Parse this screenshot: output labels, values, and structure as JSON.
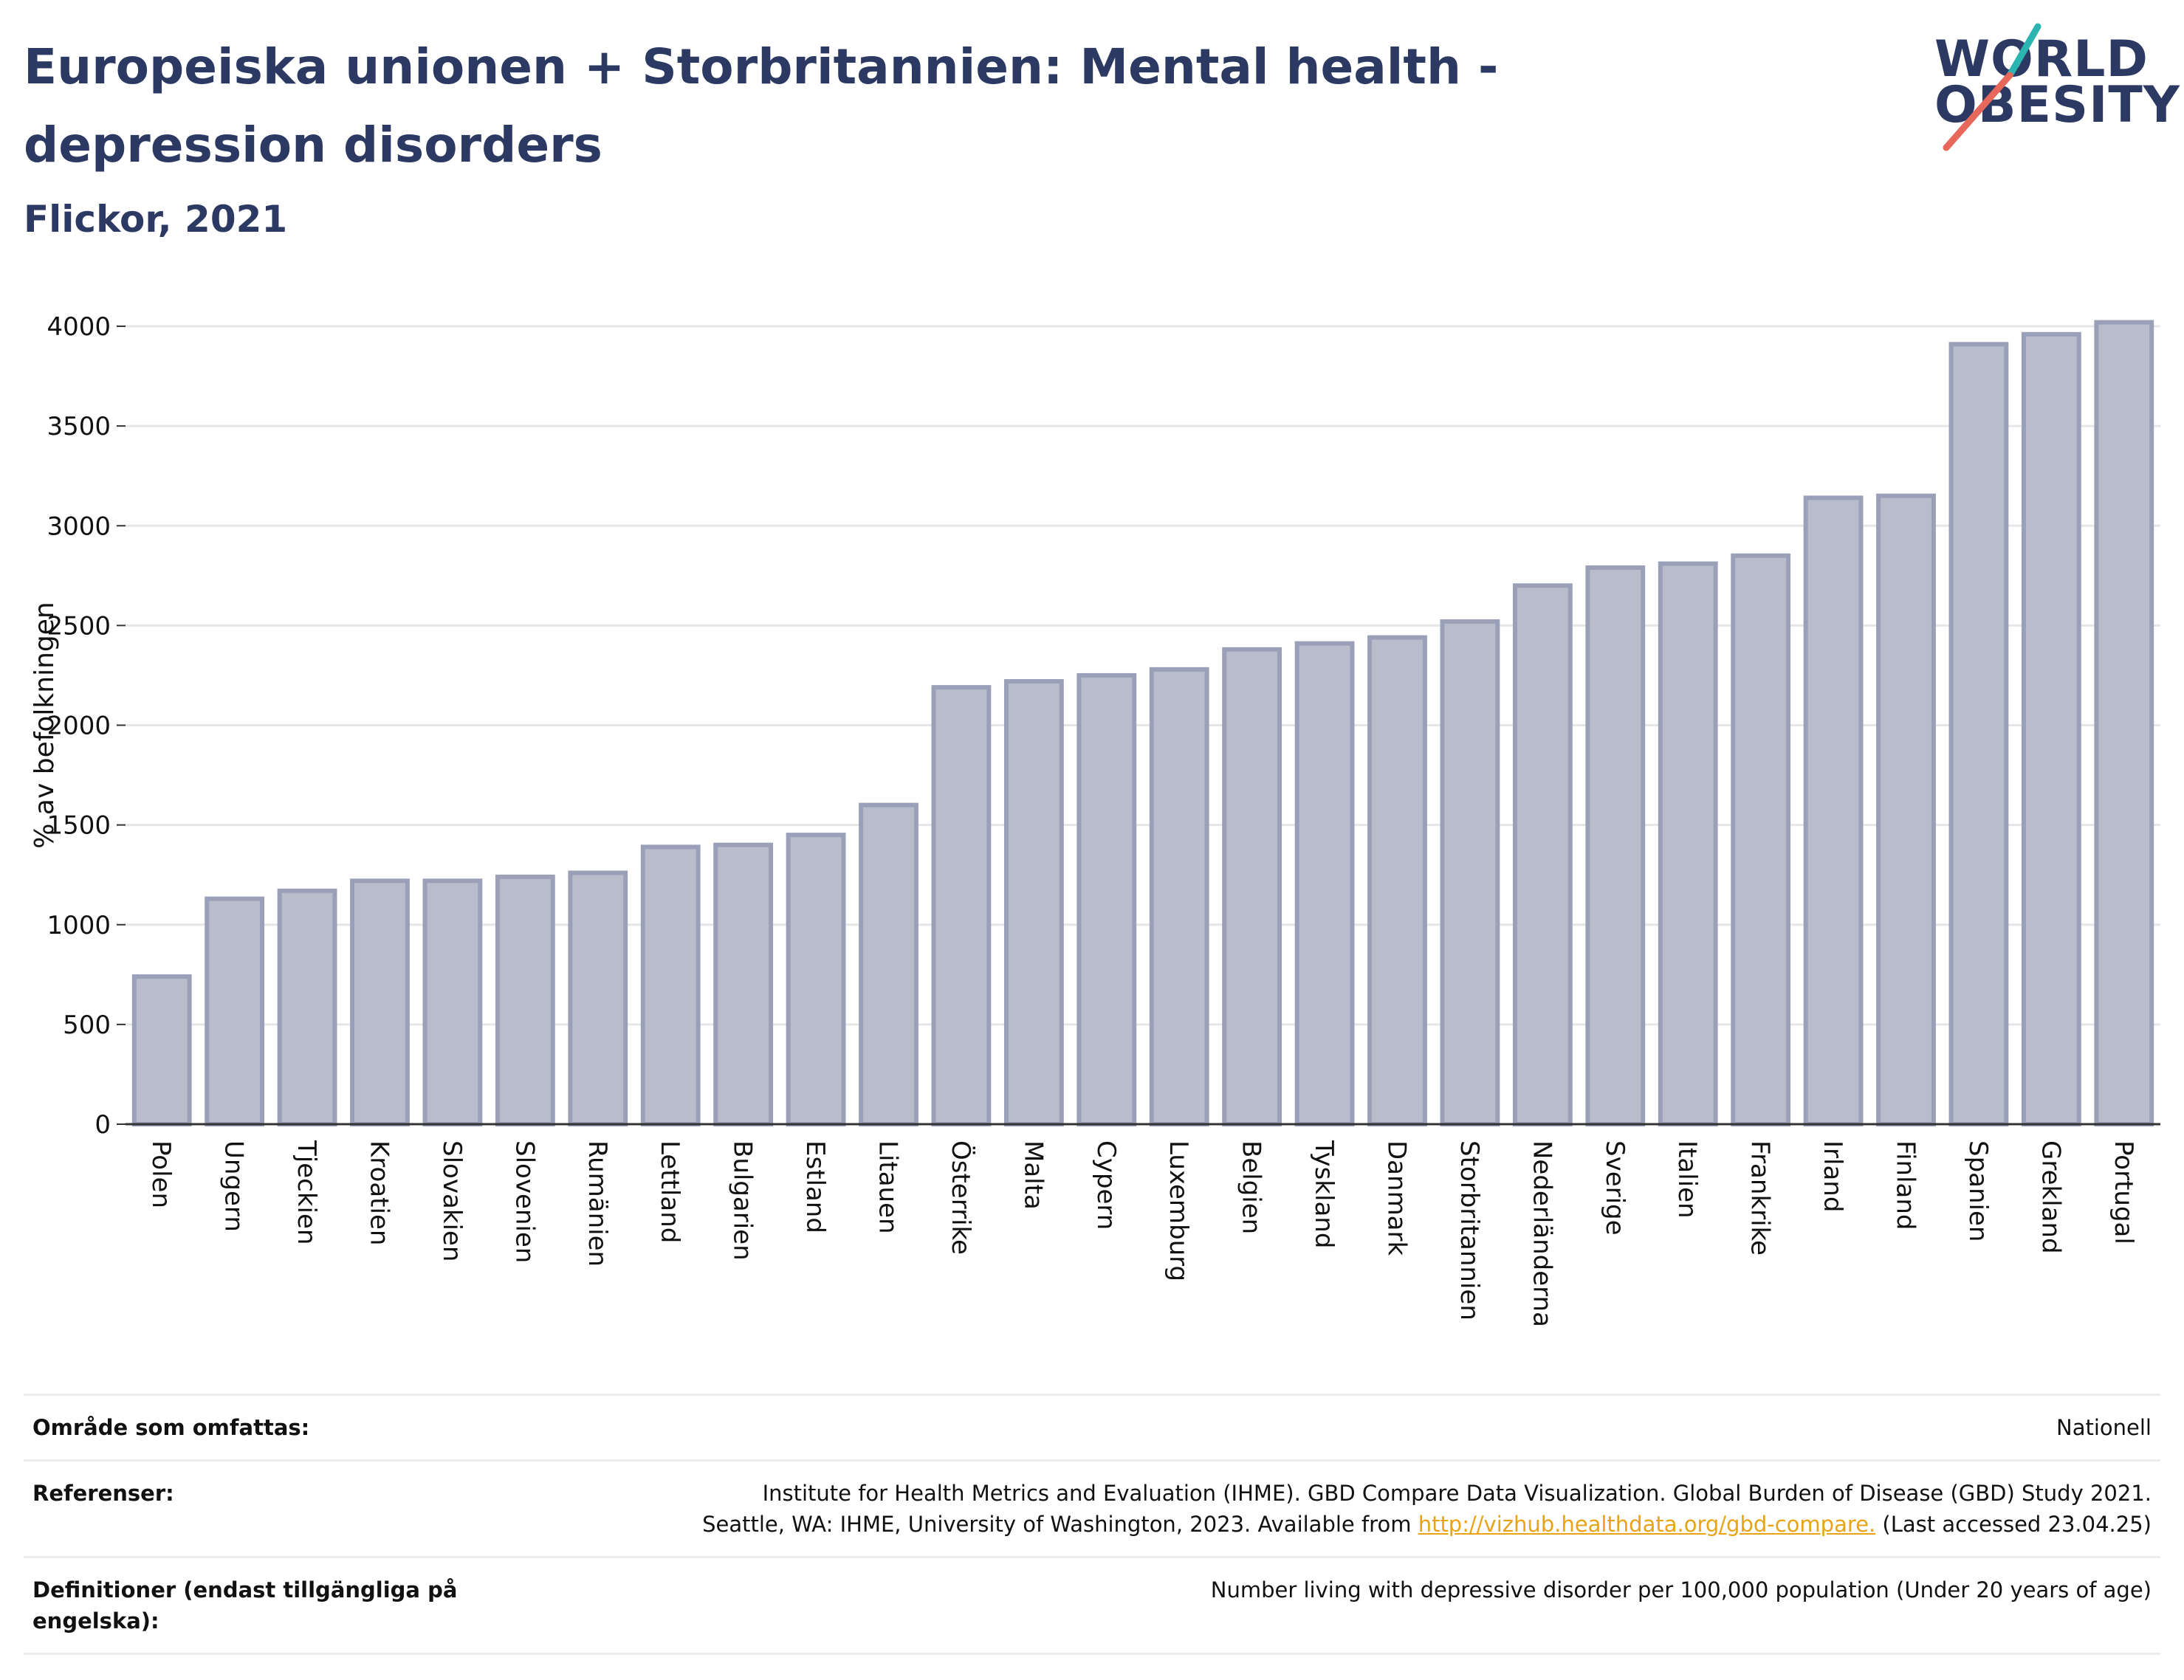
{
  "header": {
    "title": "Europeiska unionen + Storbritannien: Mental health - depression disorders",
    "subtitle": "Flickor, 2021"
  },
  "logo": {
    "line1": "WORLD",
    "line2": "OBESITY",
    "colors": {
      "text": "#2c3a63",
      "slash_top": "#2bb5b0",
      "slash_bottom": "#e8675b"
    }
  },
  "colors": {
    "bar_fill": "#b9bccb",
    "bar_stroke": "#9aa0b8",
    "gridline": "#e6e6ea",
    "axis": "#333333"
  },
  "chart_data": {
    "type": "bar",
    "ylabel": "% av befolkningen",
    "ylim": [
      0,
      4000
    ],
    "yticks": [
      0,
      500,
      1000,
      1500,
      2000,
      2500,
      3000,
      3500,
      4000
    ],
    "grid": true,
    "categories": [
      "Polen",
      "Ungern",
      "Tjeckien",
      "Kroatien",
      "Slovakien",
      "Slovenien",
      "Rumänien",
      "Lettland",
      "Bulgarien",
      "Estland",
      "Litauen",
      "Österrike",
      "Malta",
      "Cypern",
      "Luxemburg",
      "Belgien",
      "Tyskland",
      "Danmark",
      "Storbritannien",
      "Nederländerna",
      "Sverige",
      "Italien",
      "Frankrike",
      "Irland",
      "Finland",
      "Spanien",
      "Grekland",
      "Portugal"
    ],
    "values": [
      740,
      1130,
      1170,
      1220,
      1220,
      1240,
      1260,
      1390,
      1400,
      1450,
      1600,
      2190,
      2220,
      2250,
      2280,
      2380,
      2410,
      2440,
      2520,
      2700,
      2790,
      2810,
      2850,
      3140,
      3150,
      3910,
      3960,
      4020
    ]
  },
  "footer": {
    "coverage_label": "Område som omfattas:",
    "coverage_value": "Nationell",
    "references_label": "Referenser:",
    "references_line1": "Institute for Health Metrics and Evaluation (IHME). GBD Compare Data Visualization. Global Burden of Disease (GBD) Study 2021.",
    "references_line2_prefix": "Seattle, WA: IHME, University of Washington, 2023. Available from ",
    "references_link": "http://vizhub.healthdata.org/gbd-compare.",
    "references_line2_suffix": " (Last accessed 23.04.25)",
    "definitions_label": "Definitioner (endast tillgängliga på engelska):",
    "definitions_value": "Number living with depressive disorder per 100,000 population (Under 20 years of age)"
  }
}
